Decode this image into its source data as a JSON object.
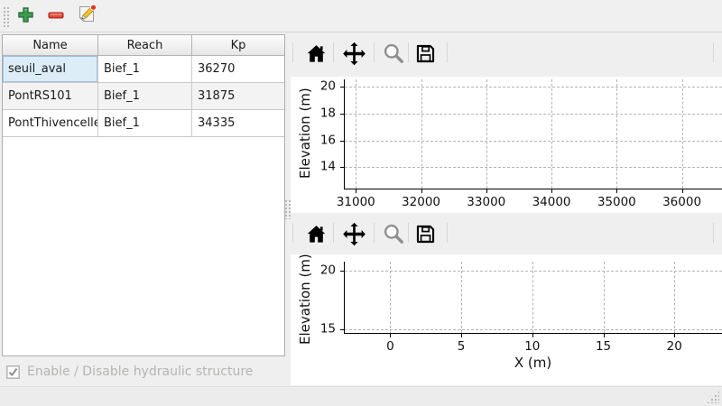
{
  "main_toolbar": {
    "buttons": [
      {
        "name": "add",
        "icon": "plus-icon"
      },
      {
        "name": "remove",
        "icon": "minus-icon"
      },
      {
        "name": "edit",
        "icon": "edit-note-icon"
      }
    ]
  },
  "structures_table": {
    "columns": [
      "Name",
      "Reach",
      "Kp"
    ],
    "rows": [
      [
        "seuil_aval",
        "Bief_1",
        "36270"
      ],
      [
        "PontRS101",
        "Bief_1",
        "31875"
      ],
      [
        "PontThivencelle",
        "Bief_1",
        "34335"
      ]
    ],
    "selected_cell": {
      "row": 0,
      "col": 0
    }
  },
  "enable_checkbox": {
    "label": "Enable / Disable hydraulic structure",
    "checked": true,
    "disabled": true
  },
  "plot_toolbar_icons": [
    "home-icon",
    "pan-icon",
    "zoom-icon",
    "save-icon"
  ],
  "chart_data": [
    {
      "type": "line",
      "title": "",
      "xlabel": "",
      "ylabel": "Elevation (m)",
      "xticks": [
        31000,
        32000,
        33000,
        34000,
        35000,
        36000
      ],
      "yticks": [
        14,
        16,
        18,
        20
      ],
      "xlim": [
        30830,
        36615
      ],
      "ylim": [
        12.4,
        20.55
      ],
      "grid": true,
      "legend": false,
      "series": []
    },
    {
      "type": "line",
      "title": "",
      "xlabel": "X (m)",
      "ylabel": "Elevation (m)",
      "xticks": [
        0,
        5,
        10,
        15,
        20
      ],
      "yticks": [
        15,
        20
      ],
      "xlim": [
        -3.2,
        23.35
      ],
      "ylim": [
        14.7,
        20.75
      ],
      "grid": true,
      "legend": false,
      "series": []
    }
  ],
  "colors": {
    "toolbar_bg": "#f0f0f0",
    "panel_bg": "#efefef",
    "canvas_bg": "#ffffff",
    "selected_cell_bg": "#dcedf8",
    "selected_cell_border": "#9fc0da",
    "alt_row_bg": "#f3f3f3",
    "grid_line": "#b4b4b4",
    "add_green": "#3f9b53",
    "remove_red": "#ec4432",
    "disabled_text": "#b4b4b2"
  }
}
